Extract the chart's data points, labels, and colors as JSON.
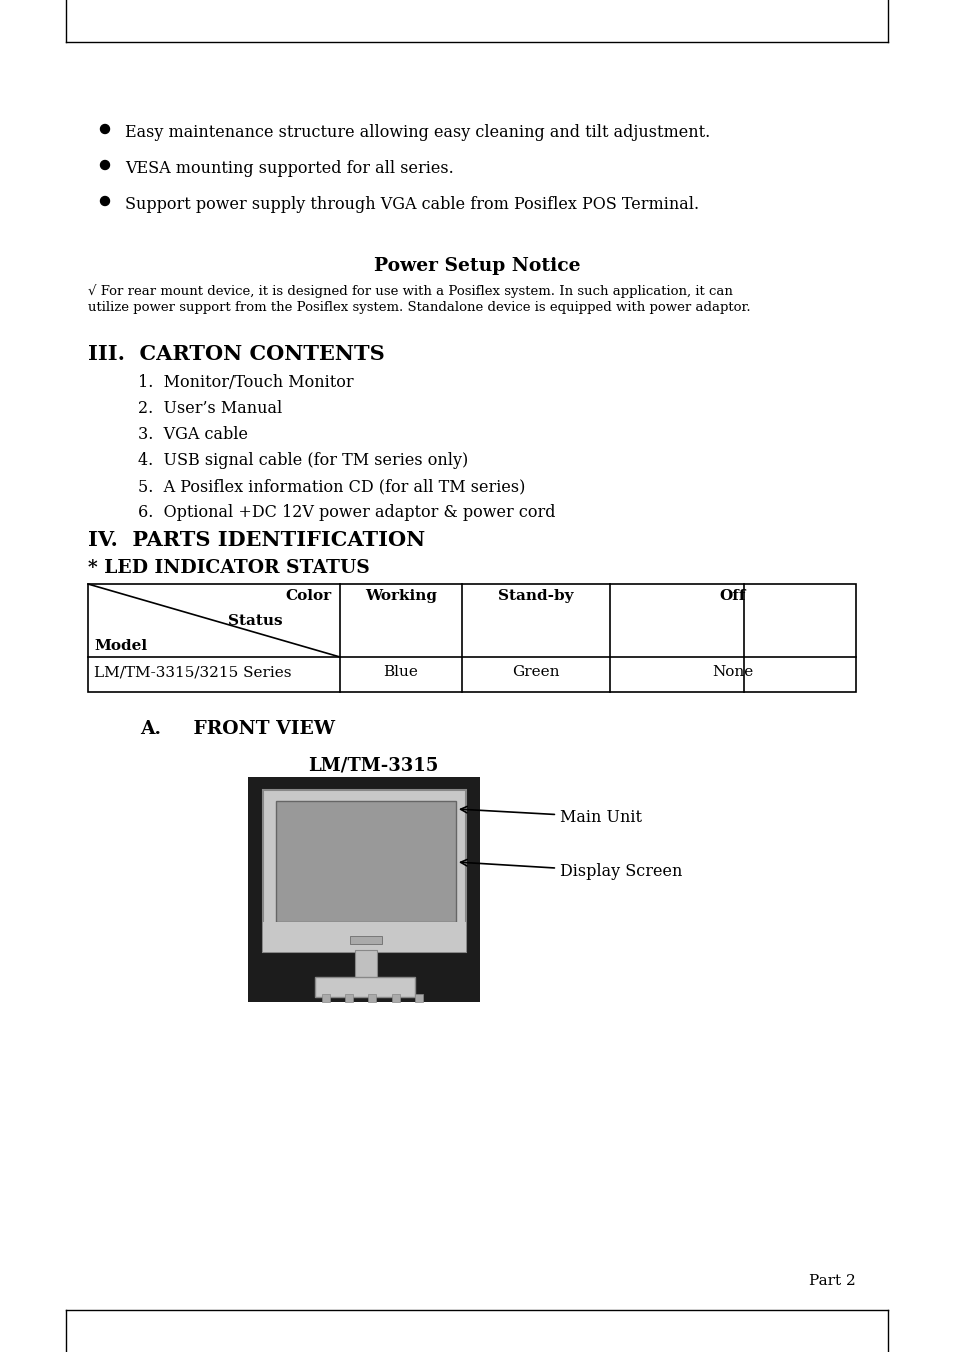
{
  "bg_color": "#ffffff",
  "bullet_items": [
    "Easy maintenance structure allowing easy cleaning and tilt adjustment.",
    "VESA mounting supported for all series.",
    "Support power supply through VGA cable from Posiflex POS Terminal."
  ],
  "power_setup_title": "Power Setup Notice",
  "power_setup_body1": "√ For rear mount device, it is designed for use with a Posiflex system. In such application, it can",
  "power_setup_body2": "utilize power support from the Posiflex system. Standalone device is equipped with power adaptor.",
  "carton_title": "III.  CARTON CONTENTS",
  "carton_items": [
    "Monitor/Touch Monitor",
    "User’s Manual",
    "VGA cable",
    "USB signal cable (for TM series only)",
    "A Posiflex information CD (for all TM series)",
    "Optional +DC 12V power adaptor & power cord"
  ],
  "parts_title": "IV.  PARTS IDENTIFICATION",
  "led_title": "* LED INDICATOR STATUS",
  "front_view_title": "A.     FRONT VIEW",
  "model_label": "LM/TM-3315",
  "annotation1": "Main Unit",
  "annotation2": "Display Screen",
  "footer": "Part 2"
}
